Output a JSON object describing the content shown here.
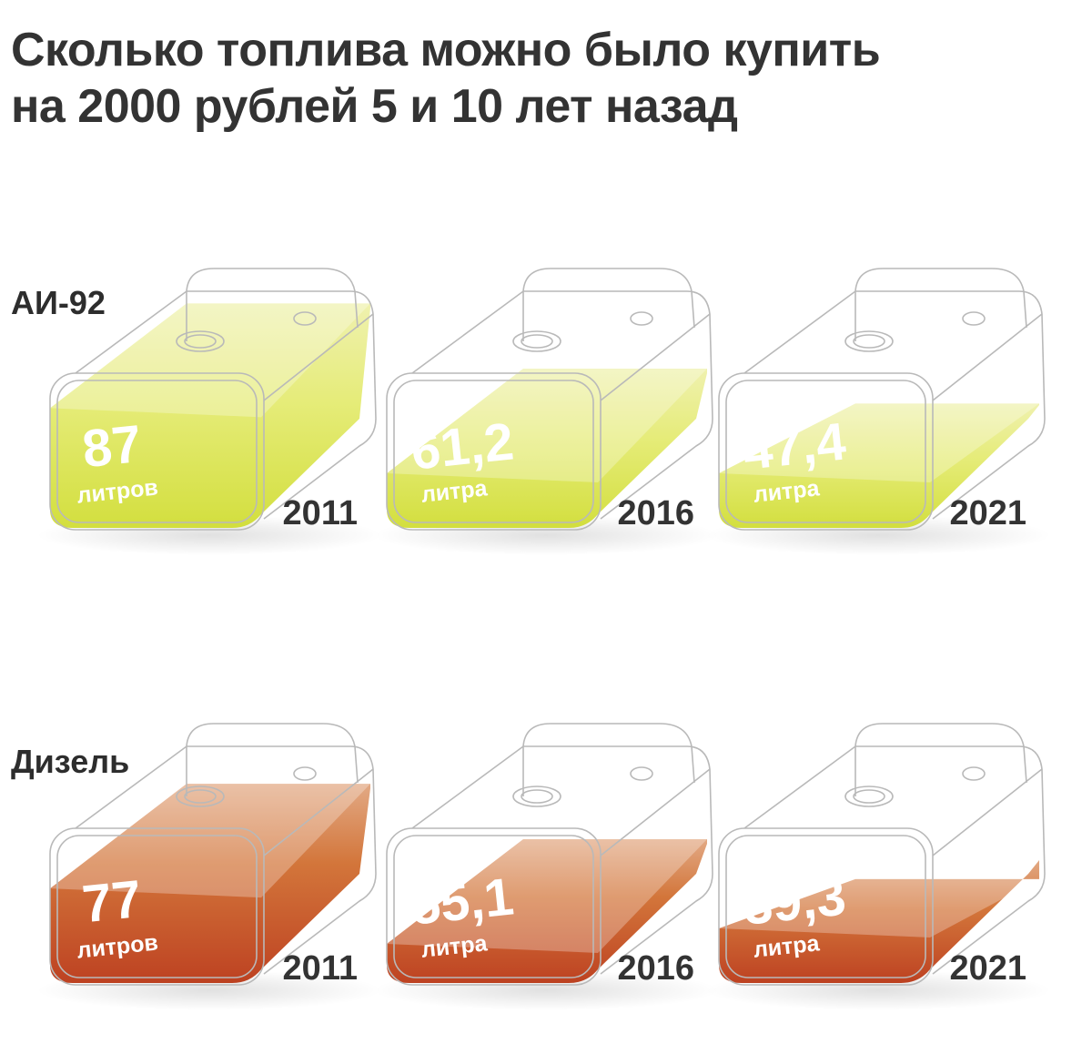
{
  "title_line1": "Сколько топлива можно было купить",
  "title_line2": "на 2000 рублей 5 и 10 лет назад",
  "chart_data": {
    "type": "bar",
    "title": "Сколько топлива можно было купить на 2000 рублей 5 и 10 лет назад",
    "categories": [
      "2011",
      "2016",
      "2021"
    ],
    "series": [
      {
        "name": "АИ-92",
        "values": [
          87,
          61.2,
          47.4
        ],
        "value_labels": [
          "87",
          "61,2",
          "47,4"
        ],
        "unit_labels": [
          "литров",
          "литра",
          "литра"
        ],
        "color": "#d8e34a"
      },
      {
        "name": "Дизель",
        "values": [
          77,
          55.1,
          39.3
        ],
        "value_labels": [
          "77",
          "55,1",
          "39,3"
        ],
        "unit_labels": [
          "литров",
          "литра",
          "литра"
        ],
        "color": "#c8461c"
      }
    ]
  }
}
